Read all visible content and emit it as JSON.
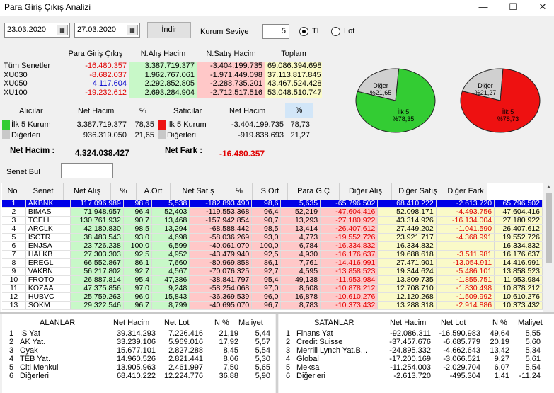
{
  "window": {
    "title": "Para Giriş Çıkış Analizi",
    "min": "—",
    "max": "☐",
    "close": "✕"
  },
  "toolbar": {
    "date_from": "23.03.2020",
    "date_to": "27.03.2020",
    "fetch_label": "İndir",
    "kurum_label": "Kurum Seviye",
    "kurum_value": "5",
    "radio_tl": "TL",
    "radio_lot": "Lot"
  },
  "summary": {
    "headers": [
      "Para Giriş Çıkış",
      "N.Alış Hacim",
      "N.Satış Hacim",
      "Toplam"
    ],
    "rows": [
      {
        "label": "Tüm Senetler",
        "pgc": "-16.480.357",
        "alis": "3.387.719.377",
        "satis": "-3.404.199.735",
        "toplam": "69.086.394.698"
      },
      {
        "label": "XU030",
        "pgc": "-8.682.037",
        "alis": "1.962.767.061",
        "satis": "-1.971.449.098",
        "toplam": "37.113.817.845"
      },
      {
        "label": "XU050",
        "pgc": "4.117.604",
        "alis": "2.292.852.805",
        "satis": "-2.288.735.201",
        "toplam": "43.467.524.428"
      },
      {
        "label": "XU100",
        "pgc": "-19.232.612",
        "alis": "2.693.284.904",
        "satis": "-2.712.517.516",
        "toplam": "53.048.510.747"
      }
    ]
  },
  "buyers": {
    "title": "Alıcılar",
    "h_net": "Net Hacim",
    "h_pct": "%",
    "rows": [
      {
        "label": "İlk 5 Kurum",
        "net": "3.387.719.377",
        "pct": "78,35"
      },
      {
        "label": "Diğerleri",
        "net": "936.319.050",
        "pct": "21,65"
      }
    ]
  },
  "sellers": {
    "title": "Satıcılar",
    "h_net": "Net Hacim",
    "h_pct": "%",
    "rows": [
      {
        "label": "İlk 5 Kurum",
        "net": "-3.404.199.735",
        "pct": "78,73"
      },
      {
        "label": "Diğerleri",
        "net": "-919.838.693",
        "pct": "21,27"
      }
    ]
  },
  "net": {
    "hacim_label": "Net Hacim :",
    "hacim_value": "4.324.038.427",
    "fark_label": "Net Fark :",
    "fark_value": "-16.480.357"
  },
  "senet_bul_label": "Senet Bul",
  "pies": [
    {
      "diger_label": "Diğer",
      "diger_pct": "%21,65",
      "ilk_label": "İlk 5",
      "ilk_pct": "%78,35",
      "ilk_share": 0.7835,
      "color": "#33cc33"
    },
    {
      "diger_label": "Diğer",
      "diger_pct": "%21,27",
      "ilk_label": "İlk 5",
      "ilk_pct": "%78,73",
      "ilk_share": 0.7873,
      "color": "#ee1111"
    }
  ],
  "main_table": {
    "headers": [
      "No",
      "Senet",
      "Net Alış",
      "%",
      "A.Ort",
      "Net Satış",
      "%",
      "S.Ort",
      "Para G.Ç",
      "Diğer Alış",
      "Diğer Satış",
      "Diğer Fark"
    ],
    "rows": [
      [
        "1",
        "AKBNK",
        "117.096.989",
        "98,6",
        "5,538",
        "-182.893.490",
        "98,6",
        "5,635",
        "-65.796.502",
        "68.410.222",
        "-2.613.720",
        "65.796.502"
      ],
      [
        "2",
        "BIMAS",
        "71.948.957",
        "96,4",
        "52,403",
        "-119.553.368",
        "96,4",
        "52,219",
        "-47.604.416",
        "52.098.171",
        "-4.493.756",
        "47.604.416"
      ],
      [
        "3",
        "TCELL",
        "130.761.932",
        "90,7",
        "13,468",
        "-157.942.854",
        "90,7",
        "13,293",
        "-27.180.922",
        "43.314.926",
        "-16.134.004",
        "27.180.922"
      ],
      [
        "4",
        "ARCLK",
        "42.180.830",
        "98,5",
        "13,294",
        "-68.588.442",
        "98,5",
        "13,414",
        "-26.407.612",
        "27.449.202",
        "-1.041.590",
        "26.407.612"
      ],
      [
        "5",
        "ISCTR",
        "38.483.543",
        "93,0",
        "4,698",
        "-58.036.269",
        "93,0",
        "4,773",
        "-19.552.726",
        "23.921.717",
        "-4.368.991",
        "19.552.726"
      ],
      [
        "6",
        "ENJSA",
        "23.726.238",
        "100,0",
        "6,599",
        "-40.061.070",
        "100,0",
        "6,784",
        "-16.334.832",
        "16.334.832",
        "",
        "16.334.832"
      ],
      [
        "7",
        "HALKB",
        "27.303.303",
        "92,5",
        "4,952",
        "-43.479.940",
        "92,5",
        "4,930",
        "-16.176.637",
        "19.688.618",
        "-3.511.981",
        "16.176.637"
      ],
      [
        "8",
        "EREGL",
        "66.552.867",
        "86,1",
        "7,660",
        "-80.969.858",
        "86,1",
        "7,761",
        "-14.416.991",
        "27.471.901",
        "-13.054.911",
        "14.416.991"
      ],
      [
        "9",
        "VAKBN",
        "56.217.802",
        "92,7",
        "4,567",
        "-70.076.325",
        "92,7",
        "4,595",
        "-13.858.523",
        "19.344.624",
        "-5.486.101",
        "13.858.523"
      ],
      [
        "10",
        "FROTO",
        "26.887.814",
        "95,4",
        "47,386",
        "-38.841.797",
        "95,4",
        "49,138",
        "-11.953.984",
        "13.809.735",
        "-1.855.751",
        "11.953.984"
      ],
      [
        "11",
        "KOZAA",
        "47.375.856",
        "97,0",
        "9,248",
        "-58.254.068",
        "97,0",
        "8,608",
        "-10.878.212",
        "12.708.710",
        "-1.830.498",
        "10.878.212"
      ],
      [
        "12",
        "HUBVC",
        "25.759.263",
        "96,0",
        "15,843",
        "-36.369.539",
        "96,0",
        "16,878",
        "-10.610.276",
        "12.120.268",
        "-1.509.992",
        "10.610.276"
      ],
      [
        "13",
        "SOKM",
        "29.322.546",
        "96,7",
        "8,799",
        "-40.695.070",
        "96,7",
        "8,783",
        "-10.373.432",
        "13.288.318",
        "-2.914.886",
        "10.373.432"
      ]
    ]
  },
  "buyers_table": {
    "headers": [
      "ALANLAR",
      "Net Hacim",
      "Net Lot",
      "N %",
      "Maliyet"
    ],
    "rows": [
      [
        "1",
        "IS Yat",
        "39.314.293",
        "7.226.416",
        "21,19",
        "5,44"
      ],
      [
        "2",
        "AK Yat.",
        "33.239.106",
        "5.969.016",
        "17,92",
        "5,57"
      ],
      [
        "3",
        "Oyak",
        "15.677.101",
        "2.827.288",
        "8,45",
        "5,54"
      ],
      [
        "4",
        "TEB Yat.",
        "14.960.526",
        "2.821.441",
        "8,06",
        "5,30"
      ],
      [
        "5",
        "Citi Menkul",
        "13.905.963",
        "2.461.997",
        "7,50",
        "5,65"
      ],
      [
        "6",
        "Diğerleri",
        "68.410.222",
        "12.224.776",
        "36,88",
        "5,90"
      ]
    ]
  },
  "sellers_table": {
    "headers": [
      "SATANLAR",
      "Net Hacim",
      "Net Lot",
      "N %",
      "Maliyet"
    ],
    "rows": [
      [
        "1",
        "Finans Yat",
        "-92.086.311",
        "-16.590.983",
        "49,64",
        "5,55"
      ],
      [
        "2",
        "Credit Suisse",
        "-37.457.676",
        "-6.685.779",
        "20,19",
        "5,60"
      ],
      [
        "3",
        "Merrill Lynch Yat.B...",
        "-24.895.332",
        "-4.662.643",
        "13,42",
        "5,34"
      ],
      [
        "4",
        "Global",
        "-17.200.169",
        "-3.066.521",
        "9,27",
        "5,61"
      ],
      [
        "5",
        "Meksa",
        "-11.254.003",
        "-2.029.704",
        "6,07",
        "5,54"
      ],
      [
        "6",
        "Diğerleri",
        "-2.613.720",
        "-495.304",
        "1,41",
        "-11,24"
      ]
    ]
  }
}
